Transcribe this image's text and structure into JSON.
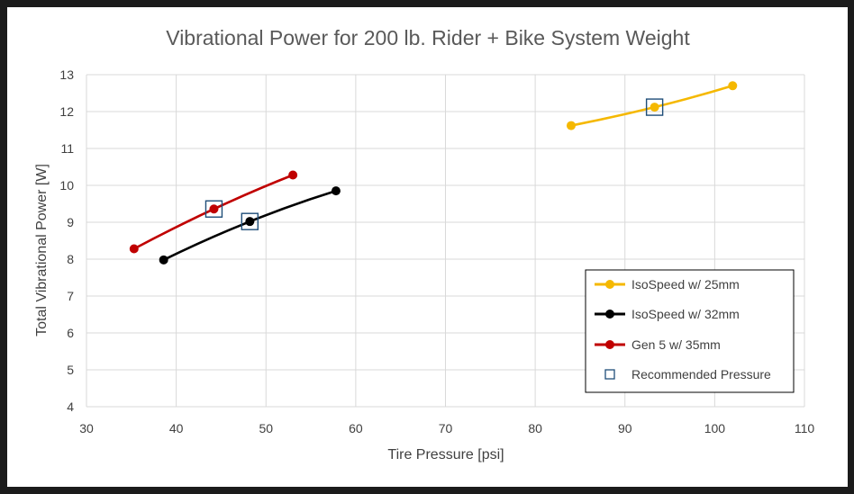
{
  "chart_data": {
    "type": "scatter",
    "title": "Vibrational Power for 200 lb. Rider + Bike System Weight",
    "xlabel": "Tire Pressure [psi]",
    "ylabel": "Total Vibrational Power [W]",
    "xlim": [
      30,
      110
    ],
    "ylim": [
      4,
      13
    ],
    "xticks": [
      30,
      40,
      50,
      60,
      70,
      80,
      90,
      100,
      110
    ],
    "yticks": [
      4,
      5,
      6,
      7,
      8,
      9,
      10,
      11,
      12,
      13
    ],
    "grid": true,
    "legend_position": "bottom-right",
    "series": [
      {
        "name": "IsoSpeed w/ 25mm",
        "color": "#f5b800",
        "points": [
          [
            84.0,
            11.62
          ],
          [
            93.3,
            12.12
          ],
          [
            102.0,
            12.7
          ]
        ]
      },
      {
        "name": "IsoSpeed w/ 32mm",
        "color": "#000000",
        "points": [
          [
            38.6,
            7.98
          ],
          [
            48.2,
            9.02
          ],
          [
            57.8,
            9.85
          ]
        ]
      },
      {
        "name": "Gen 5 w/ 35mm",
        "color": "#c00000",
        "points": [
          [
            35.3,
            8.28
          ],
          [
            44.2,
            9.36
          ],
          [
            53.0,
            10.28
          ]
        ]
      }
    ],
    "recommended_pressure": {
      "name": "Recommended Pressure",
      "color": "#1f4e79",
      "points": [
        [
          93.3,
          12.12
        ],
        [
          48.2,
          9.02
        ],
        [
          44.2,
          9.36
        ]
      ]
    }
  }
}
